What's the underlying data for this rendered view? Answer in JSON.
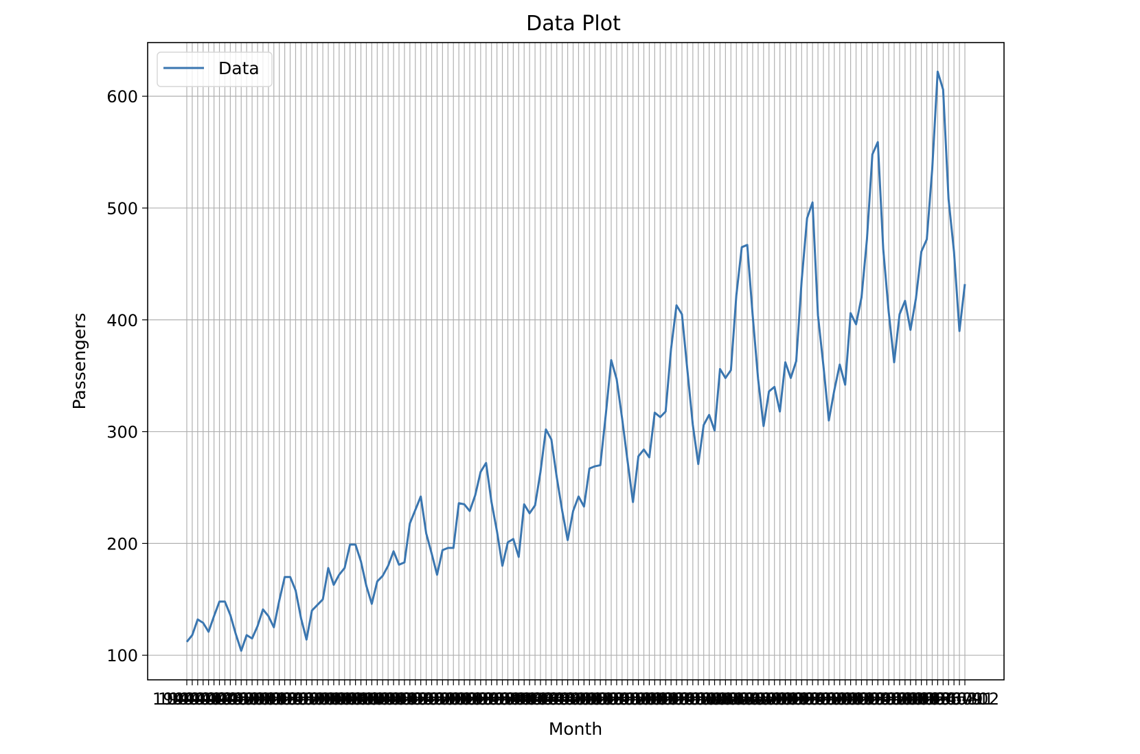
{
  "chart_data": {
    "type": "line",
    "title": "Data Plot",
    "xlabel": "Month",
    "ylabel": "Passengers",
    "ylim": [
      78,
      648
    ],
    "yticks": [
      100,
      200,
      300,
      400,
      500,
      600
    ],
    "grid": true,
    "legend_position": "top-left",
    "line_color": "#3a76b0",
    "x": [
      "1949-01",
      "1949-02",
      "1949-03",
      "1949-04",
      "1949-05",
      "1949-06",
      "1949-07",
      "1949-08",
      "1949-09",
      "1949-10",
      "1949-11",
      "1949-12",
      "1950-01",
      "1950-02",
      "1950-03",
      "1950-04",
      "1950-05",
      "1950-06",
      "1950-07",
      "1950-08",
      "1950-09",
      "1950-10",
      "1950-11",
      "1950-12",
      "1951-01",
      "1951-02",
      "1951-03",
      "1951-04",
      "1951-05",
      "1951-06",
      "1951-07",
      "1951-08",
      "1951-09",
      "1951-10",
      "1951-11",
      "1951-12",
      "1952-01",
      "1952-02",
      "1952-03",
      "1952-04",
      "1952-05",
      "1952-06",
      "1952-07",
      "1952-08",
      "1952-09",
      "1952-10",
      "1952-11",
      "1952-12",
      "1953-01",
      "1953-02",
      "1953-03",
      "1953-04",
      "1953-05",
      "1953-06",
      "1953-07",
      "1953-08",
      "1953-09",
      "1953-10",
      "1953-11",
      "1953-12",
      "1954-01",
      "1954-02",
      "1954-03",
      "1954-04",
      "1954-05",
      "1954-06",
      "1954-07",
      "1954-08",
      "1954-09",
      "1954-10",
      "1954-11",
      "1954-12",
      "1955-01",
      "1955-02",
      "1955-03",
      "1955-04",
      "1955-05",
      "1955-06",
      "1955-07",
      "1955-08",
      "1955-09",
      "1955-10",
      "1955-11",
      "1955-12",
      "1956-01",
      "1956-02",
      "1956-03",
      "1956-04",
      "1956-05",
      "1956-06",
      "1956-07",
      "1956-08",
      "1956-09",
      "1956-10",
      "1956-11",
      "1956-12",
      "1957-01",
      "1957-02",
      "1957-03",
      "1957-04",
      "1957-05",
      "1957-06",
      "1957-07",
      "1957-08",
      "1957-09",
      "1957-10",
      "1957-11",
      "1957-12",
      "1958-01",
      "1958-02",
      "1958-03",
      "1958-04",
      "1958-05",
      "1958-06",
      "1958-07",
      "1958-08",
      "1958-09",
      "1958-10",
      "1958-11",
      "1958-12",
      "1959-01",
      "1959-02",
      "1959-03",
      "1959-04",
      "1959-05",
      "1959-06",
      "1959-07",
      "1959-08",
      "1959-09",
      "1959-10",
      "1959-11",
      "1959-12",
      "1960-01",
      "1960-02",
      "1960-03",
      "1960-04",
      "1960-05",
      "1960-06",
      "1960-07",
      "1960-08",
      "1960-09",
      "1960-10",
      "1960-11",
      "1960-12"
    ],
    "series": [
      {
        "name": "Data",
        "values": [
          112,
          118,
          132,
          129,
          121,
          135,
          148,
          148,
          136,
          119,
          104,
          118,
          115,
          126,
          141,
          135,
          125,
          149,
          170,
          170,
          158,
          133,
          114,
          140,
          145,
          150,
          178,
          163,
          172,
          178,
          199,
          199,
          184,
          162,
          146,
          166,
          171,
          180,
          193,
          181,
          183,
          218,
          230,
          242,
          209,
          191,
          172,
          194,
          196,
          196,
          236,
          235,
          229,
          243,
          264,
          272,
          237,
          211,
          180,
          201,
          204,
          188,
          235,
          227,
          234,
          264,
          302,
          293,
          259,
          229,
          203,
          229,
          242,
          233,
          267,
          269,
          270,
          315,
          364,
          347,
          312,
          274,
          237,
          278,
          284,
          277,
          317,
          313,
          318,
          374,
          413,
          405,
          355,
          306,
          271,
          306,
          315,
          301,
          356,
          348,
          355,
          422,
          465,
          467,
          404,
          347,
          305,
          336,
          340,
          318,
          362,
          348,
          363,
          435,
          491,
          505,
          404,
          359,
          310,
          337,
          360,
          342,
          406,
          396,
          420,
          472,
          548,
          559,
          463,
          407,
          362,
          405,
          417,
          391,
          419,
          461,
          472,
          535,
          622,
          606,
          508,
          461,
          390,
          432
        ]
      }
    ]
  }
}
